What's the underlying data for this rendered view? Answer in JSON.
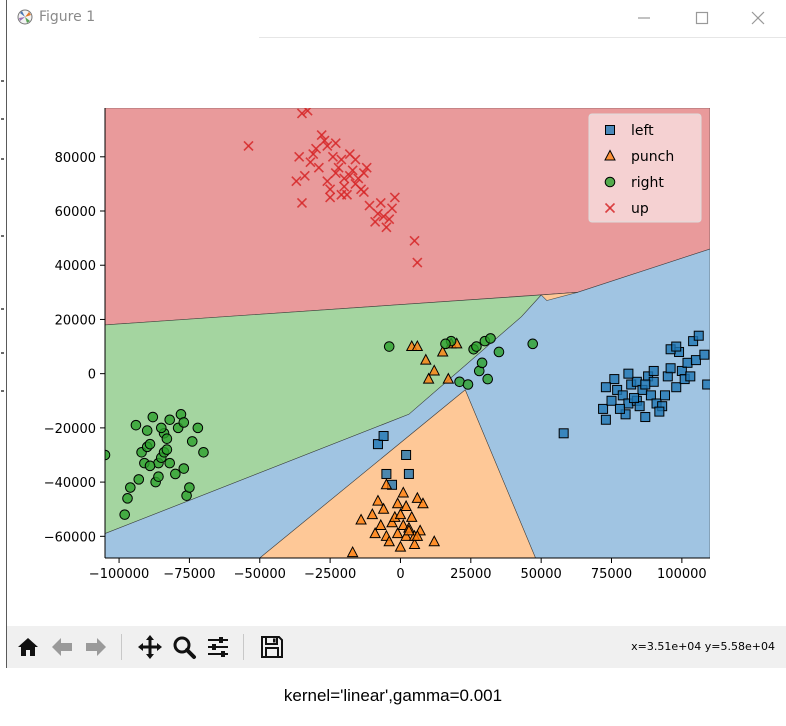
{
  "window": {
    "title": "Figure 1",
    "controls": {
      "minimize_icon": "minimize-icon",
      "maximize_icon": "maximize-icon",
      "close_icon": "close-icon"
    }
  },
  "chart_data": {
    "type": "scatter",
    "title": "",
    "xlabel": "",
    "ylabel": "",
    "xlim": [
      -105000,
      110000
    ],
    "ylim": [
      -68000,
      98000
    ],
    "xticks": [
      -100000,
      -75000,
      -50000,
      -25000,
      0,
      25000,
      50000,
      75000,
      100000
    ],
    "xtick_labels": [
      "−100000",
      "−75000",
      "−50000",
      "−25000",
      "0",
      "25000",
      "50000",
      "75000",
      "100000"
    ],
    "yticks": [
      -60000,
      -40000,
      -20000,
      0,
      20000,
      40000,
      60000,
      80000
    ],
    "ytick_labels": [
      "−60000",
      "−40000",
      "−20000",
      "0",
      "20000",
      "40000",
      "60000",
      "80000"
    ],
    "grid": false,
    "legend_position": "top-right",
    "background": "decision regions",
    "regions": [
      {
        "class": "up",
        "color": "#e99a9b",
        "polygon": [
          [
            -105000,
            98000
          ],
          [
            110000,
            98000
          ],
          [
            110000,
            46000
          ],
          [
            63000,
            30000
          ],
          [
            -105000,
            18000
          ]
        ]
      },
      {
        "class": "right",
        "color": "#a4d5a0",
        "polygon": [
          [
            -105000,
            18000
          ],
          [
            50000,
            29000
          ],
          [
            43000,
            21000
          ],
          [
            3000,
            -15000
          ],
          [
            -105000,
            -59000
          ]
        ]
      },
      {
        "class": "left",
        "color": "#a0c4e2",
        "polygon": [
          [
            110000,
            46000
          ],
          [
            63000,
            30000
          ],
          [
            50000,
            29000
          ],
          [
            43000,
            21000
          ],
          [
            3000,
            -15000
          ],
          [
            -105000,
            -59000
          ],
          [
            -105000,
            -68000
          ],
          [
            -50000,
            -68000
          ],
          [
            23000,
            -6000
          ],
          [
            48000,
            -68000
          ],
          [
            110000,
            -68000
          ]
        ]
      },
      {
        "class": "punch",
        "color": "#fec897",
        "polygon": [
          [
            -50000,
            -68000
          ],
          [
            23000,
            -6000
          ],
          [
            48000,
            -68000
          ]
        ]
      },
      {
        "class": "punch",
        "color": "#fec897",
        "polygon": [
          [
            50000,
            29000
          ],
          [
            63000,
            30000
          ],
          [
            52000,
            27000
          ]
        ]
      }
    ],
    "series": [
      {
        "name": "left",
        "marker": "square",
        "color": "#1f77b4",
        "points": [
          [
            -8000,
            -26000
          ],
          [
            -6000,
            -23000
          ],
          [
            -5000,
            -37000
          ],
          [
            -3000,
            -41000
          ],
          [
            2000,
            -30000
          ],
          [
            3000,
            -37000
          ],
          [
            58000,
            -22000
          ],
          [
            72000,
            -13000
          ],
          [
            73000,
            -17000
          ],
          [
            75000,
            -10000
          ],
          [
            77000,
            -6000
          ],
          [
            79000,
            -8000
          ],
          [
            80000,
            -15000
          ],
          [
            81000,
            -11000
          ],
          [
            82000,
            -4000
          ],
          [
            84000,
            -3000
          ],
          [
            84000,
            -10000
          ],
          [
            85000,
            -12000
          ],
          [
            86000,
            -6000
          ],
          [
            87000,
            -16000
          ],
          [
            88000,
            -1000
          ],
          [
            89000,
            -8000
          ],
          [
            90000,
            -3000
          ],
          [
            91000,
            -11000
          ],
          [
            93000,
            -12000
          ],
          [
            94000,
            -8000
          ],
          [
            95000,
            -1000
          ],
          [
            96000,
            2000
          ],
          [
            98000,
            -5000
          ],
          [
            99000,
            8000
          ],
          [
            100000,
            1000
          ],
          [
            101000,
            -2000
          ],
          [
            102000,
            4000
          ],
          [
            104000,
            12000
          ],
          [
            105000,
            5000
          ],
          [
            106000,
            14000
          ],
          [
            108000,
            7000
          ],
          [
            109000,
            -4000
          ],
          [
            96000,
            9000
          ],
          [
            92000,
            -14000
          ],
          [
            81000,
            0
          ],
          [
            76000,
            -2000
          ],
          [
            87000,
            -4000
          ],
          [
            103000,
            -1000
          ],
          [
            98000,
            10000
          ],
          [
            83000,
            -9000
          ],
          [
            90000,
            1000
          ],
          [
            78000,
            -13000
          ],
          [
            73000,
            -5000
          ]
        ]
      },
      {
        "name": "punch",
        "marker": "triangle",
        "color": "#ff7f0e",
        "points": [
          [
            -17000,
            -66000
          ],
          [
            -14000,
            -54000
          ],
          [
            -10000,
            -52000
          ],
          [
            -9000,
            -59000
          ],
          [
            -8000,
            -47000
          ],
          [
            -7000,
            -56000
          ],
          [
            -6000,
            -50000
          ],
          [
            -5000,
            -60000
          ],
          [
            -4000,
            -62000
          ],
          [
            -3000,
            -55000
          ],
          [
            -2000,
            -53000
          ],
          [
            -1000,
            -59000
          ],
          [
            0,
            -52000
          ],
          [
            0,
            -64000
          ],
          [
            1000,
            -44000
          ],
          [
            1000,
            -56000
          ],
          [
            2000,
            -60000
          ],
          [
            2000,
            -49000
          ],
          [
            3000,
            -57000
          ],
          [
            4000,
            -53000
          ],
          [
            5000,
            -60000
          ],
          [
            5000,
            -63000
          ],
          [
            6000,
            -46000
          ],
          [
            7000,
            -58000
          ],
          [
            8000,
            -48000
          ],
          [
            -5000,
            -41000
          ],
          [
            12000,
            -62000
          ],
          [
            4000,
            10000
          ],
          [
            6000,
            10000
          ],
          [
            9000,
            5000
          ],
          [
            12000,
            1000
          ],
          [
            15000,
            8000
          ],
          [
            17000,
            -2000
          ],
          [
            18000,
            11000
          ],
          [
            20000,
            11000
          ],
          [
            10000,
            -2000
          ],
          [
            3000,
            -58000
          ],
          [
            -1000,
            -48000
          ],
          [
            6000,
            -60000
          ]
        ]
      },
      {
        "name": "right",
        "marker": "circle",
        "color": "#2ca02c",
        "points": [
          [
            -105000,
            -30000
          ],
          [
            -98000,
            -52000
          ],
          [
            -97000,
            -46000
          ],
          [
            -96000,
            -42000
          ],
          [
            -94000,
            -19000
          ],
          [
            -93000,
            -39000
          ],
          [
            -92000,
            -29000
          ],
          [
            -91000,
            -33000
          ],
          [
            -90000,
            -21000
          ],
          [
            -90000,
            -27000
          ],
          [
            -89000,
            -26000
          ],
          [
            -88000,
            -16000
          ],
          [
            -87000,
            -40000
          ],
          [
            -86000,
            -38000
          ],
          [
            -86000,
            -33000
          ],
          [
            -85000,
            -31000
          ],
          [
            -84000,
            -22000
          ],
          [
            -84000,
            -29000
          ],
          [
            -83000,
            -24000
          ],
          [
            -82000,
            -17000
          ],
          [
            -82000,
            -33000
          ],
          [
            -80000,
            -37000
          ],
          [
            -79000,
            -20000
          ],
          [
            -78000,
            -15000
          ],
          [
            -77000,
            -18000
          ],
          [
            -77000,
            -35000
          ],
          [
            -76000,
            -45000
          ],
          [
            -75000,
            -42000
          ],
          [
            -74000,
            -25000
          ],
          [
            -72000,
            -20000
          ],
          [
            -70000,
            -29000
          ],
          [
            -85000,
            -20000
          ],
          [
            -89000,
            -34000
          ],
          [
            -83000,
            -28000
          ],
          [
            -4000,
            10000
          ],
          [
            18000,
            12000
          ],
          [
            21000,
            -3000
          ],
          [
            24000,
            -4000
          ],
          [
            26000,
            9000
          ],
          [
            27000,
            10000
          ],
          [
            28000,
            1000
          ],
          [
            29000,
            4000
          ],
          [
            30000,
            12000
          ],
          [
            31000,
            -2000
          ],
          [
            32000,
            13000
          ],
          [
            35000,
            8000
          ],
          [
            47000,
            11000
          ],
          [
            16000,
            11000
          ]
        ]
      },
      {
        "name": "up",
        "marker": "x",
        "color": "#d62728",
        "points": [
          [
            -54000,
            84000
          ],
          [
            -37000,
            71000
          ],
          [
            -36000,
            80000
          ],
          [
            -35000,
            96000
          ],
          [
            -35000,
            63000
          ],
          [
            -34000,
            73000
          ],
          [
            -33000,
            97000
          ],
          [
            -32000,
            78000
          ],
          [
            -31000,
            81000
          ],
          [
            -30000,
            83000
          ],
          [
            -29000,
            76000
          ],
          [
            -28000,
            88000
          ],
          [
            -27000,
            86000
          ],
          [
            -26000,
            84000
          ],
          [
            -25000,
            65000
          ],
          [
            -25000,
            68000
          ],
          [
            -24000,
            80000
          ],
          [
            -23000,
            74000
          ],
          [
            -22000,
            76000
          ],
          [
            -21000,
            79000
          ],
          [
            -20000,
            72000
          ],
          [
            -20000,
            69000
          ],
          [
            -19000,
            66000
          ],
          [
            -18000,
            81000
          ],
          [
            -17000,
            75000
          ],
          [
            -16000,
            79000
          ],
          [
            -16000,
            70000
          ],
          [
            -15000,
            72000
          ],
          [
            -14000,
            68000
          ],
          [
            -13000,
            67000
          ],
          [
            -13000,
            74000
          ],
          [
            -12000,
            76000
          ],
          [
            -11000,
            62000
          ],
          [
            -9000,
            56000
          ],
          [
            -8000,
            59000
          ],
          [
            -7000,
            63000
          ],
          [
            -5000,
            54000
          ],
          [
            -3000,
            61000
          ],
          [
            -2000,
            65000
          ],
          [
            -4000,
            57000
          ],
          [
            -6000,
            58000
          ],
          [
            5000,
            49000
          ],
          [
            6000,
            41000
          ],
          [
            -26000,
            71000
          ],
          [
            -21000,
            66000
          ],
          [
            -18000,
            73000
          ],
          [
            -23000,
            85000
          ]
        ]
      }
    ]
  },
  "toolbar": {
    "buttons": [
      "home-icon",
      "back-arrow-icon",
      "forward-arrow-icon",
      "pan-icon",
      "zoom-icon",
      "configure-subplots-icon",
      "save-icon"
    ],
    "coordinates": "x=3.51e+04  y=5.58e+04"
  },
  "caption": "kernel='linear',gamma=0.001"
}
